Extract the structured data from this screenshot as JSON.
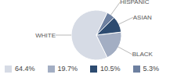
{
  "chart_data": {
    "type": "pie",
    "categories": [
      "WHITE",
      "BLACK",
      "ASIAN",
      "HISPANIC"
    ],
    "values": [
      64.4,
      19.7,
      10.5,
      5.3
    ],
    "value_labels": [
      "64.4%",
      "19.7%",
      "10.5%",
      "5.3%"
    ],
    "colors": [
      "#d6dbe5",
      "#a3aec3",
      "#2d4b70",
      "#6d80a0"
    ]
  }
}
